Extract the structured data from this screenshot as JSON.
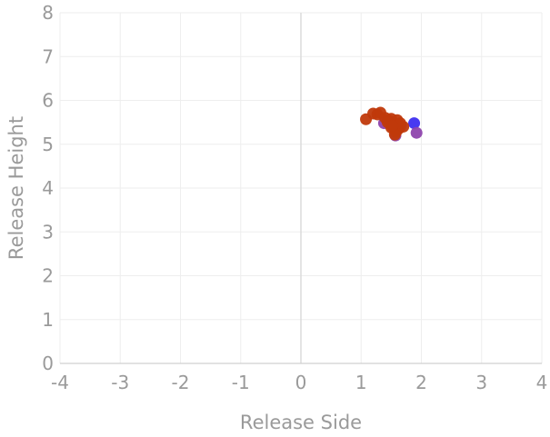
{
  "chart_data": {
    "type": "scatter",
    "title": "",
    "xlabel": "Release Side",
    "ylabel": "Release Height",
    "xlim": [
      -4,
      4
    ],
    "ylim": [
      0,
      8
    ],
    "x_ticks": [
      "-4",
      "-3",
      "-2",
      "-1",
      "0",
      "1",
      "2",
      "3",
      "4"
    ],
    "y_ticks": [
      "0",
      "1",
      "2",
      "3",
      "4",
      "5",
      "6",
      "7",
      "8"
    ],
    "grid": true,
    "legend": "none",
    "series": [
      {
        "color": "#3e2ff0",
        "points": [
          [
            1.88,
            5.48
          ]
        ]
      },
      {
        "color": "#8e44ad",
        "points": [
          [
            1.92,
            5.26
          ],
          [
            1.38,
            5.48
          ],
          [
            1.57,
            5.2
          ],
          [
            1.66,
            5.42
          ]
        ]
      },
      {
        "color": "#c0390b",
        "points": [
          [
            1.08,
            5.57
          ],
          [
            1.2,
            5.7
          ],
          [
            1.27,
            5.68
          ],
          [
            1.32,
            5.72
          ],
          [
            1.4,
            5.6
          ],
          [
            1.45,
            5.55
          ],
          [
            1.5,
            5.58
          ],
          [
            1.55,
            5.45
          ],
          [
            1.6,
            5.55
          ],
          [
            1.62,
            5.35
          ],
          [
            1.5,
            5.38
          ],
          [
            1.58,
            5.28
          ],
          [
            1.56,
            5.22
          ],
          [
            1.7,
            5.4
          ],
          [
            1.65,
            5.48
          ],
          [
            1.44,
            5.5
          ],
          [
            1.52,
            5.42
          ]
        ]
      }
    ]
  }
}
